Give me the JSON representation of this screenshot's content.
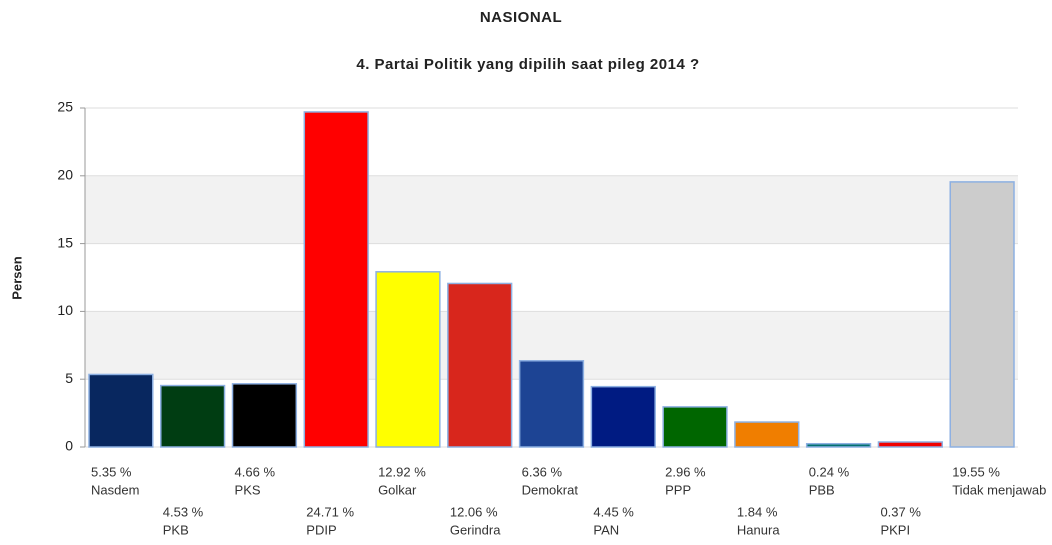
{
  "chart_data": {
    "type": "bar",
    "title": "NASIONAL",
    "subtitle": "4. Partai Politik yang dipilih saat pileg 2014 ?",
    "y_label": "Persen",
    "categories": [
      "Nasdem",
      "PKB",
      "PKS",
      "PDIP",
      "Golkar",
      "Gerindra",
      "Demokrat",
      "PAN",
      "PPP",
      "Hanura",
      "PBB",
      "PKPI",
      "Tidak menjawab"
    ],
    "values": [
      5.35,
      4.53,
      4.66,
      24.71,
      12.92,
      12.06,
      6.36,
      4.45,
      2.96,
      1.84,
      0.24,
      0.37,
      19.55
    ],
    "value_labels": [
      "5.35 %",
      "4.53 %",
      "4.66 %",
      "24.71 %",
      "12.92 %",
      "12.06 %",
      "6.36 %",
      "4.45 %",
      "2.96 %",
      "1.84 %",
      "0.24 %",
      "0.37 %",
      "19.55 %"
    ],
    "colors": [
      "#08275f",
      "#003d12",
      "#000000",
      "#ff0000",
      "#ffff00",
      "#d8261c",
      "#1d4494",
      "#001b82",
      "#006600",
      "#f07e00",
      "#007070",
      "#f00000",
      "#cccccc"
    ],
    "ylim": [
      0,
      25
    ],
    "yticks": [
      0,
      5,
      10,
      15,
      20,
      25
    ],
    "grid": true
  }
}
